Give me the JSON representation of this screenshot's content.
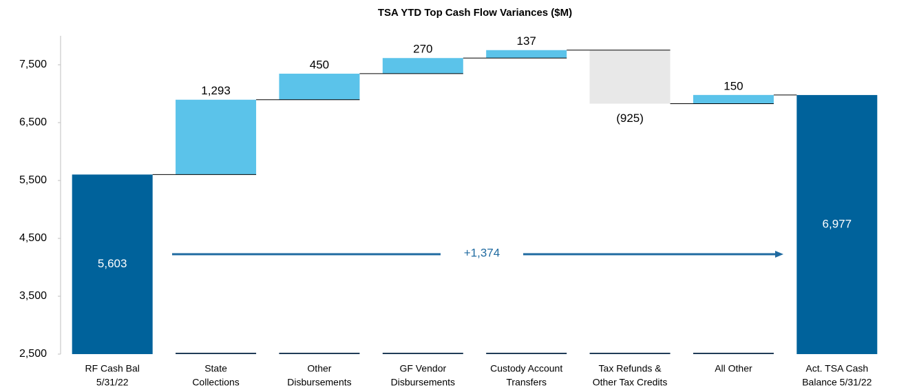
{
  "chart_data": {
    "type": "waterfall",
    "title": "TSA YTD Top Cash Flow Variances ($M)",
    "categories": [
      [
        "RF Cash Bal",
        "5/31/22"
      ],
      [
        "State",
        "Collections"
      ],
      [
        "Other",
        "Disbursements"
      ],
      [
        "GF Vendor",
        "Disbursements"
      ],
      [
        "Custody Account",
        "Transfers"
      ],
      [
        "Tax Refunds &",
        "Other Tax Credits"
      ],
      [
        "All Other"
      ],
      [
        "Act. TSA Cash",
        "Balance 5/31/22"
      ]
    ],
    "values": [
      5603,
      1293,
      450,
      270,
      137,
      -925,
      150,
      6977
    ],
    "value_labels": [
      "5,603",
      "1,293",
      "450",
      "270",
      "137",
      "(925)",
      "150",
      "6,977"
    ],
    "colors": {
      "total": "#00629b",
      "increase": "#5bc3ea",
      "decrease": "#e8e8e8"
    },
    "annotation": "+1,374",
    "ylim": [
      2500,
      8000
    ],
    "yticks": [
      {
        "value": 2500,
        "label": "2,500"
      },
      {
        "value": 3500,
        "label": "3,500"
      },
      {
        "value": 4500,
        "label": "4,500"
      },
      {
        "value": 5500,
        "label": "5,500"
      },
      {
        "value": 6500,
        "label": "6,500"
      },
      {
        "value": 7500,
        "label": "7,500"
      }
    ],
    "grid": false
  }
}
